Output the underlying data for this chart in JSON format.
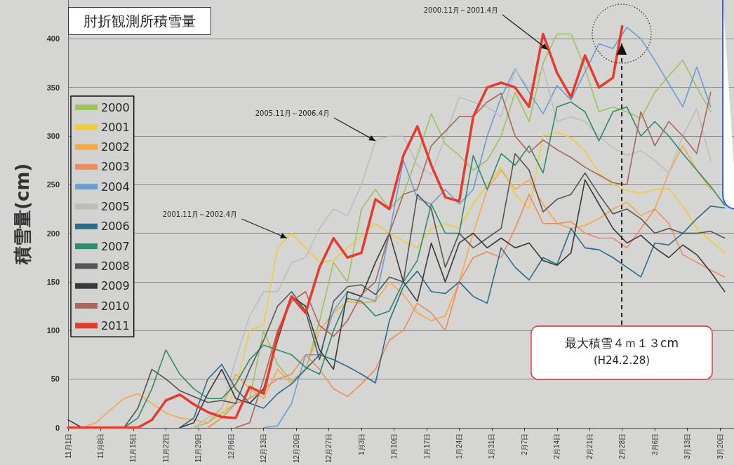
{
  "chart_data": {
    "type": "line",
    "title": "肘折観測所積雪量",
    "ylabel": "積雪量(cm)",
    "x": [
      "2011-11-01",
      "2011-11-04",
      "2011-11-07",
      "2011-11-10",
      "2011-11-13",
      "2011-11-16",
      "2011-11-19",
      "2011-11-22",
      "2011-11-25",
      "2011-11-28",
      "2011-12-01",
      "2011-12-04",
      "2011-12-07",
      "2011-12-10",
      "2011-12-13",
      "2011-12-16",
      "2011-12-19",
      "2011-12-22",
      "2011-12-25",
      "2011-12-28",
      "2011-12-31",
      "2012-01-03",
      "2012-01-06",
      "2012-01-09",
      "2012-01-12",
      "2012-01-15",
      "2012-01-18",
      "2012-01-21",
      "2012-01-24",
      "2012-01-27",
      "2012-01-30",
      "2012-02-02",
      "2012-02-05",
      "2012-02-08",
      "2012-02-11",
      "2012-02-14",
      "2012-02-17",
      "2012-02-20",
      "2012-02-23",
      "2012-02-26",
      "2012-02-29",
      "2012-03-03",
      "2012-03-06",
      "2012-03-09",
      "2012-03-12",
      "2012-03-15",
      "2012-03-18",
      "2012-03-21"
    ],
    "xlim": [
      "2011-11-01",
      "2012-03-23"
    ],
    "xticks": [
      {
        "value": "2011-11-01",
        "label": "11月1日"
      },
      {
        "value": "2011-11-08",
        "label": "11月8日"
      },
      {
        "value": "2011-11-15",
        "label": "11月15日"
      },
      {
        "value": "2011-11-22",
        "label": "11月22日"
      },
      {
        "value": "2011-11-29",
        "label": "11月29日"
      },
      {
        "value": "2011-12-06",
        "label": "12月6日"
      },
      {
        "value": "2011-12-13",
        "label": "12月13日"
      },
      {
        "value": "2011-12-20",
        "label": "12月20日"
      },
      {
        "value": "2011-12-27",
        "label": "12月27日"
      },
      {
        "value": "2012-01-03",
        "label": "1月3日"
      },
      {
        "value": "2012-01-10",
        "label": "1月10日"
      },
      {
        "value": "2012-01-17",
        "label": "1月17日"
      },
      {
        "value": "2012-01-24",
        "label": "1月24日"
      },
      {
        "value": "2012-01-31",
        "label": "1月31日"
      },
      {
        "value": "2012-02-07",
        "label": "2月7日"
      },
      {
        "value": "2012-02-14",
        "label": "2月14日"
      },
      {
        "value": "2012-02-21",
        "label": "2月21日"
      },
      {
        "value": "2012-02-28",
        "label": "2月28日"
      },
      {
        "value": "2012-03-06",
        "label": "3月6日"
      },
      {
        "value": "2012-03-13",
        "label": "3月13日"
      },
      {
        "value": "2012-03-20",
        "label": "3月20日"
      }
    ],
    "ylim": [
      0,
      440
    ],
    "yticks": [
      0,
      50,
      100,
      150,
      200,
      250,
      300,
      350,
      400
    ],
    "grid": "y",
    "legend": "left",
    "marker": "none",
    "line_style": "solid",
    "series": [
      {
        "name": "2000",
        "color": "#9cc45a",
        "values": [
          null,
          null,
          null,
          null,
          null,
          null,
          null,
          null,
          null,
          0,
          5,
          15,
          25,
          30,
          100,
          65,
          48,
          60,
          110,
          170,
          150,
          225,
          245,
          225,
          240,
          280,
          323,
          292,
          280,
          265,
          275,
          300,
          345,
          315,
          375,
          405,
          405,
          370,
          325,
          330,
          325,
          318,
          345,
          362,
          378,
          350,
          325,
          null
        ]
      },
      {
        "name": "2001",
        "color": "#f0cc3c",
        "values": [
          null,
          null,
          null,
          null,
          null,
          null,
          null,
          null,
          null,
          null,
          0,
          10,
          40,
          100,
          106,
          185,
          200,
          185,
          170,
          172,
          185,
          197,
          210,
          200,
          192,
          185,
          205,
          210,
          205,
          230,
          250,
          268,
          240,
          225,
          300,
          304,
          298,
          285,
          262,
          250,
          244,
          241,
          245,
          246,
          228,
          205,
          192,
          180
        ]
      },
      {
        "name": "2002",
        "color": "#f5a848",
        "values": [
          null,
          0,
          5,
          18,
          30,
          35,
          25,
          15,
          10,
          8,
          5,
          20,
          55,
          40,
          30,
          60,
          45,
          60,
          100,
          118,
          130,
          128,
          130,
          150,
          137,
          118,
          110,
          115,
          150,
          200,
          245,
          265,
          245,
          255,
          230,
          210,
          205,
          208,
          215,
          225,
          232,
          218,
          225,
          262,
          290,
          265,
          245,
          null
        ]
      },
      {
        "name": "2003",
        "color": "#ef8a5e",
        "values": [
          null,
          null,
          null,
          null,
          null,
          null,
          null,
          null,
          null,
          null,
          0,
          10,
          25,
          30,
          40,
          50,
          55,
          75,
          60,
          40,
          32,
          45,
          60,
          90,
          100,
          128,
          118,
          100,
          150,
          175,
          181,
          175,
          205,
          240,
          210,
          210,
          212,
          200,
          195,
          195,
          185,
          205,
          225,
          210,
          178,
          170,
          162,
          155
        ]
      },
      {
        "name": "2004",
        "color": "#6a9ed2",
        "values": [
          null,
          null,
          null,
          null,
          null,
          null,
          null,
          null,
          null,
          null,
          null,
          null,
          null,
          null,
          0,
          2,
          25,
          75,
          75,
          120,
          140,
          135,
          130,
          200,
          275,
          236,
          230,
          245,
          230,
          245,
          300,
          340,
          369,
          345,
          323,
          352,
          337,
          366,
          395,
          390,
          412,
          400,
          378,
          354,
          330,
          371,
          330,
          null
        ]
      },
      {
        "name": "2005",
        "color": "#bdbdbd",
        "values": [
          null,
          null,
          null,
          null,
          null,
          null,
          null,
          null,
          null,
          0,
          10,
          20,
          70,
          115,
          140,
          140,
          170,
          175,
          205,
          225,
          218,
          250,
          295,
          300,
          300,
          270,
          260,
          300,
          340,
          335,
          330,
          320,
          368,
          349,
          370,
          315,
          320,
          315,
          300,
          288,
          280,
          285,
          275,
          262,
          300,
          328,
          275,
          null
        ]
      },
      {
        "name": "2006",
        "color": "#2c6b8a",
        "values": [
          null,
          null,
          null,
          null,
          null,
          null,
          null,
          null,
          0,
          10,
          50,
          65,
          40,
          25,
          20,
          35,
          45,
          60,
          75,
          70,
          63,
          55,
          46,
          110,
          145,
          161,
          140,
          138,
          150,
          135,
          128,
          185,
          165,
          152,
          175,
          168,
          205,
          185,
          183,
          175,
          165,
          155,
          190,
          188,
          200,
          215,
          228,
          226
        ]
      },
      {
        "name": "2007",
        "color": "#2e8b6e",
        "values": [
          null,
          null,
          null,
          null,
          0,
          10,
          40,
          80,
          55,
          40,
          30,
          30,
          45,
          70,
          85,
          80,
          75,
          62,
          55,
          100,
          133,
          130,
          115,
          120,
          150,
          172,
          230,
          200,
          200,
          280,
          245,
          282,
          270,
          290,
          262,
          330,
          335,
          325,
          295,
          325,
          330,
          300,
          315,
          300,
          282,
          265,
          248,
          229
        ]
      },
      {
        "name": "2008",
        "color": "#555555",
        "values": [
          null,
          null,
          null,
          null,
          0,
          20,
          60,
          50,
          38,
          32,
          26,
          28,
          25,
          60,
          90,
          125,
          140,
          120,
          70,
          130,
          145,
          147,
          137,
          155,
          150,
          240,
          225,
          165,
          200,
          185,
          195,
          205,
          282,
          265,
          222,
          235,
          240,
          262,
          240,
          220,
          225,
          215,
          200,
          205,
          200,
          200,
          202,
          195
        ]
      },
      {
        "name": "2009",
        "color": "#3a3a3a",
        "values": [
          8,
          0,
          null,
          null,
          null,
          null,
          null,
          null,
          0,
          5,
          35,
          60,
          30,
          25,
          40,
          90,
          135,
          125,
          80,
          60,
          140,
          135,
          170,
          200,
          150,
          130,
          190,
          150,
          190,
          200,
          185,
          195,
          185,
          190,
          172,
          167,
          180,
          255,
          230,
          205,
          190,
          198,
          185,
          175,
          188,
          178,
          160,
          140
        ]
      },
      {
        "name": "2010",
        "color": "#a8675a",
        "values": [
          null,
          null,
          null,
          null,
          null,
          null,
          null,
          null,
          null,
          null,
          null,
          null,
          0,
          5,
          50,
          100,
          130,
          140,
          105,
          94,
          110,
          137,
          150,
          200,
          240,
          245,
          290,
          305,
          320,
          320,
          335,
          344,
          300,
          283,
          296,
          286,
          278,
          268,
          260,
          252,
          250,
          325,
          290,
          315,
          300,
          282,
          345,
          null
        ]
      },
      {
        "name": "2011",
        "color": "#e8392e",
        "x": [
          "2011-11-01",
          "2011-11-04",
          "2011-11-07",
          "2011-11-10",
          "2011-11-13",
          "2011-11-16",
          "2011-11-19",
          "2011-11-22",
          "2011-11-25",
          "2011-11-28",
          "2011-12-01",
          "2011-12-04",
          "2011-12-07",
          "2011-12-10",
          "2011-12-13",
          "2011-12-16",
          "2011-12-19",
          "2011-12-22",
          "2011-12-25",
          "2011-12-28",
          "2011-12-31",
          "2012-01-03",
          "2012-01-06",
          "2012-01-09",
          "2012-01-12",
          "2012-01-15",
          "2012-01-18",
          "2012-01-21",
          "2012-01-24",
          "2012-01-27",
          "2012-01-30",
          "2012-02-02",
          "2012-02-05",
          "2012-02-08",
          "2012-02-11",
          "2012-02-14",
          "2012-02-17",
          "2012-02-20",
          "2012-02-23",
          "2012-02-26",
          "2012-02-28"
        ],
        "values": [
          0,
          0,
          0,
          0,
          0,
          0,
          8,
          28,
          34,
          24,
          16,
          11,
          10,
          42,
          35,
          95,
          135,
          118,
          165,
          195,
          175,
          180,
          235,
          225,
          280,
          310,
          270,
          237,
          233,
          320,
          350,
          355,
          350,
          330,
          405,
          365,
          340,
          383,
          350,
          360,
          413
        ]
      }
    ],
    "annotations": [
      {
        "text": "2000.11月～2001.4月",
        "x": "2012-02-12",
        "y": 389
      },
      {
        "text": "2005.11月～2006.4月",
        "x": "2012-01-06",
        "y": 295
      },
      {
        "text": "2001.11月～2002.4月",
        "x": "2011-12-18",
        "y": 195
      },
      "最大積雪４ｍ１３cm\n(H24.2.28)"
    ]
  }
}
